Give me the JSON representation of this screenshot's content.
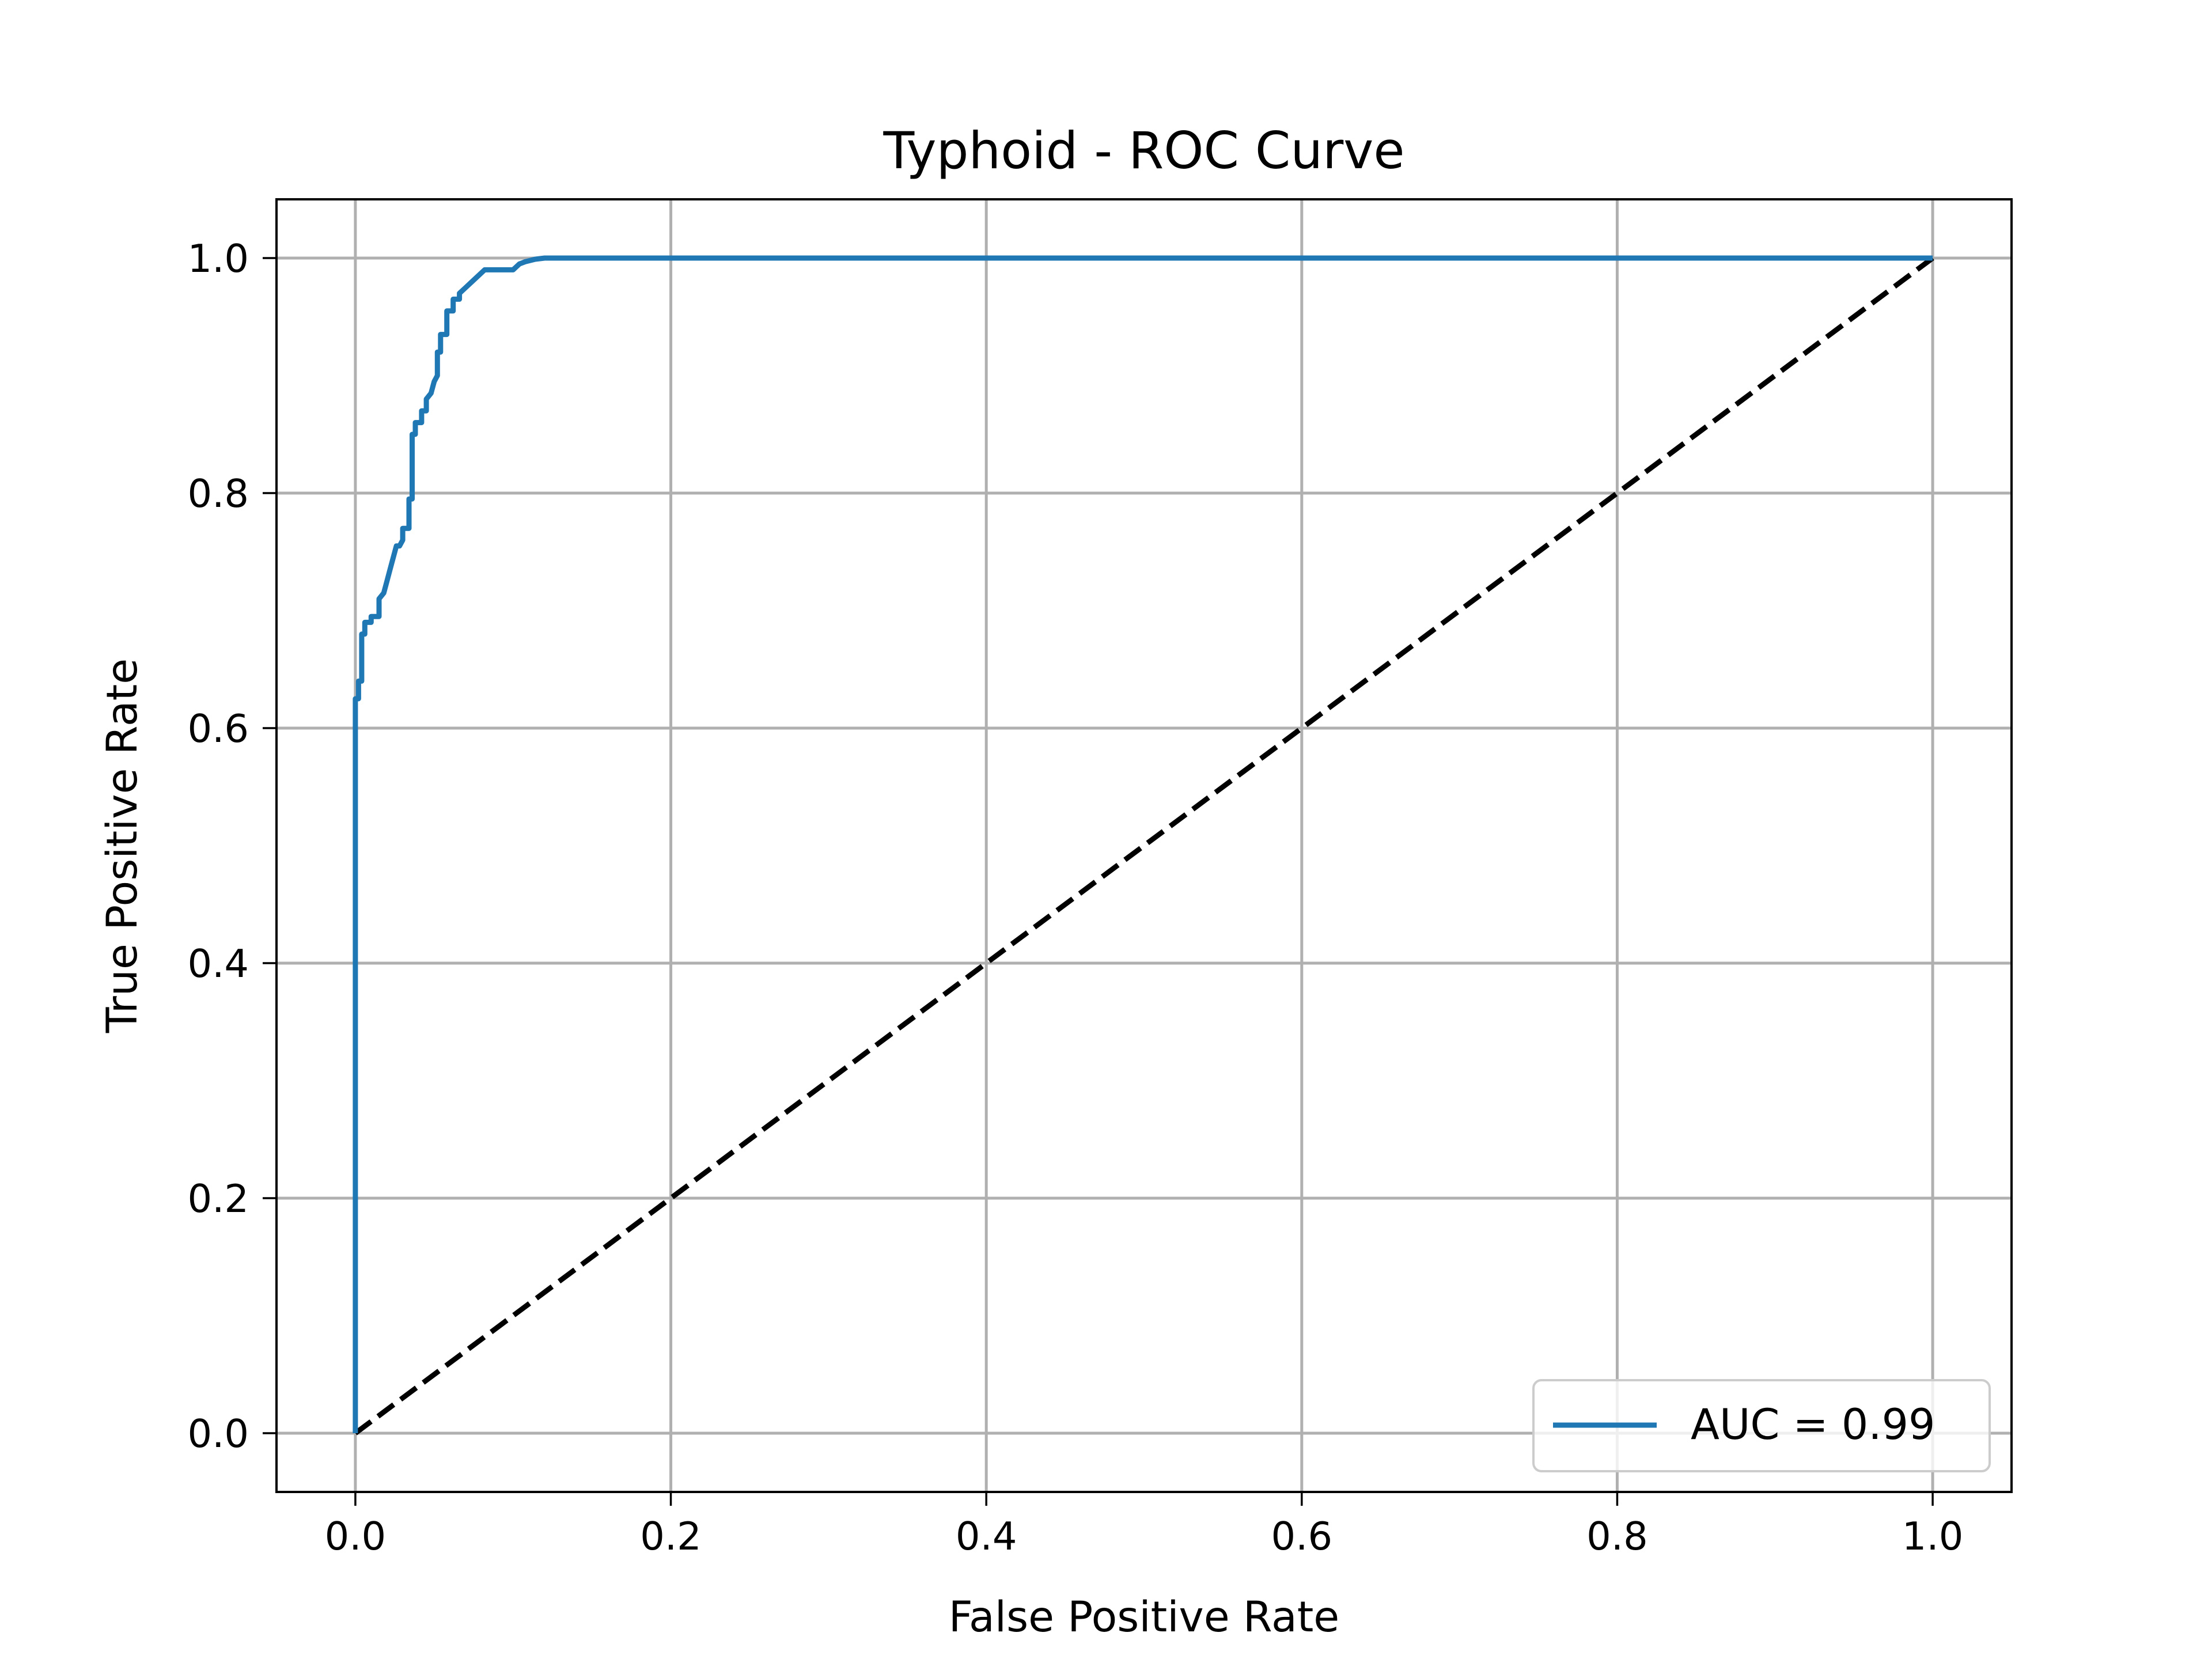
{
  "chart_data": {
    "type": "line",
    "title": "Typhoid - ROC Curve",
    "xlabel": "False Positive Rate",
    "ylabel": "True Positive Rate",
    "xlim": [
      -0.05,
      1.05
    ],
    "ylim": [
      -0.05,
      1.05
    ],
    "x_ticks": [
      0.0,
      0.2,
      0.4,
      0.6,
      0.8,
      1.0
    ],
    "y_ticks": [
      0.0,
      0.2,
      0.4,
      0.6,
      0.8,
      1.0
    ],
    "x_tick_labels": [
      "0.0",
      "0.2",
      "0.4",
      "0.6",
      "0.8",
      "1.0"
    ],
    "y_tick_labels": [
      "0.0",
      "0.2",
      "0.4",
      "0.6",
      "0.8",
      "1.0"
    ],
    "grid": true,
    "legend_placement": "lower-right",
    "series": [
      {
        "name": "AUC = 0.99",
        "color": "#1f77b4",
        "style": "solid",
        "x": [
          0.0,
          0.0,
          0.002,
          0.002,
          0.004,
          0.004,
          0.006,
          0.006,
          0.01,
          0.01,
          0.015,
          0.015,
          0.018,
          0.02,
          0.022,
          0.024,
          0.026,
          0.028,
          0.03,
          0.03,
          0.034,
          0.034,
          0.036,
          0.036,
          0.038,
          0.038,
          0.042,
          0.042,
          0.045,
          0.045,
          0.048,
          0.05,
          0.052,
          0.052,
          0.054,
          0.054,
          0.058,
          0.058,
          0.062,
          0.062,
          0.066,
          0.066,
          0.07,
          0.074,
          0.078,
          0.082,
          0.086,
          0.09,
          0.1,
          0.104,
          0.108,
          0.114,
          0.12,
          1.0
        ],
        "y": [
          0.0,
          0.625,
          0.625,
          0.64,
          0.64,
          0.68,
          0.68,
          0.69,
          0.69,
          0.695,
          0.695,
          0.71,
          0.715,
          0.725,
          0.735,
          0.745,
          0.755,
          0.755,
          0.76,
          0.77,
          0.77,
          0.795,
          0.795,
          0.85,
          0.85,
          0.86,
          0.86,
          0.87,
          0.87,
          0.88,
          0.885,
          0.895,
          0.9,
          0.92,
          0.92,
          0.935,
          0.935,
          0.955,
          0.955,
          0.965,
          0.965,
          0.97,
          0.975,
          0.98,
          0.985,
          0.99,
          0.99,
          0.99,
          0.99,
          0.995,
          0.997,
          0.999,
          1.0,
          1.0
        ]
      },
      {
        "name": "",
        "color": "#000000",
        "style": "dashed",
        "x": [
          0.0,
          1.0
        ],
        "y": [
          0.0,
          1.0
        ]
      }
    ]
  }
}
